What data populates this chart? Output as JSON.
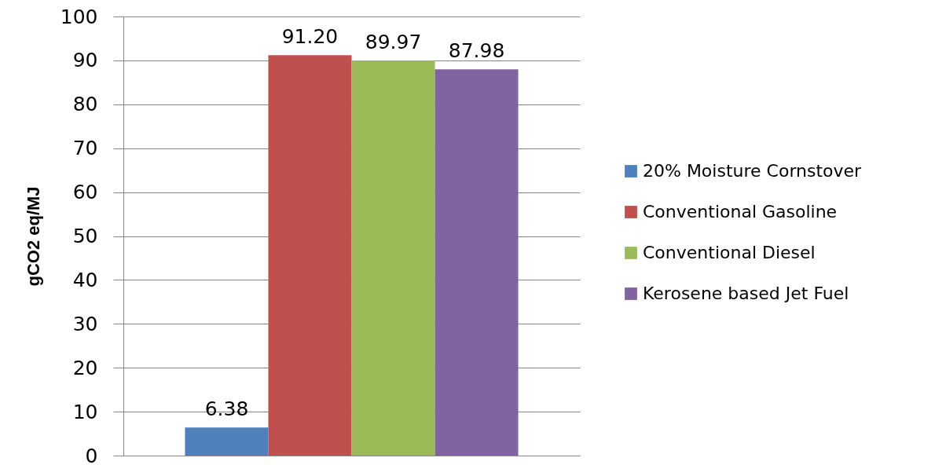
{
  "chart_data": {
    "type": "bar",
    "ylabel": "gCO2 eq/MJ",
    "categories": [
      null
    ],
    "series": [
      {
        "name": "20% Moisture Cornstover",
        "color": "#4f81bd",
        "values": [
          6.38
        ],
        "value_labels": [
          "6.38"
        ]
      },
      {
        "name": "Conventional Gasoline",
        "color": "#c0504d",
        "values": [
          91.2
        ],
        "value_labels": [
          "91.20"
        ]
      },
      {
        "name": "Conventional Diesel",
        "color": "#9bbb59",
        "values": [
          89.97
        ],
        "value_labels": [
          "89.97"
        ]
      },
      {
        "name": "Kerosene based Jet Fuel",
        "color": "#8064a2",
        "values": [
          87.98
        ],
        "value_labels": [
          "87.98"
        ]
      }
    ],
    "ylim": [
      0,
      100
    ],
    "yticks": [
      0,
      10,
      20,
      30,
      40,
      50,
      60,
      70,
      80,
      90,
      100
    ],
    "grid": "y",
    "legend": "right",
    "tick_labels": "y"
  }
}
